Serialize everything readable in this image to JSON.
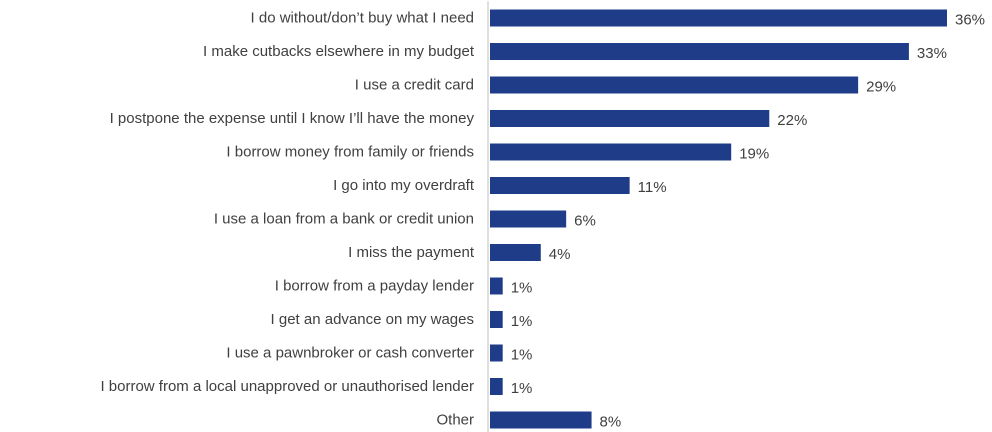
{
  "chart_data": {
    "type": "bar",
    "orientation": "horizontal",
    "title": "",
    "xlabel": "",
    "ylabel": "",
    "categories": [
      "I do without/don’t  buy what I need",
      "I make cutbacks elsewhere in my budget",
      "I use a credit card",
      "I postpone the expense until I know I’ll have the money",
      "I borrow money from family or friends",
      "I go into my overdraft",
      "I use a loan from a bank or credit union",
      "I miss the payment",
      "I borrow from a payday lender",
      "I get an advance on my wages",
      "I use a pawnbroker or cash converter",
      "I borrow from a local unapproved or unauthorised lender",
      "Other"
    ],
    "values": [
      36,
      33,
      29,
      22,
      19,
      11,
      6,
      4,
      1,
      1,
      1,
      1,
      8
    ],
    "value_labels": [
      "36%",
      "33%",
      "29%",
      "22%",
      "19%",
      "11%",
      "6%",
      "4%",
      "1%",
      "1%",
      "1%",
      "1%",
      "8%"
    ],
    "xlim": [
      0,
      36
    ],
    "grid": false,
    "legend": "none",
    "bar_color": "#1f3c88",
    "text_color": "#404040",
    "axis_color": "#bfbfbf"
  }
}
